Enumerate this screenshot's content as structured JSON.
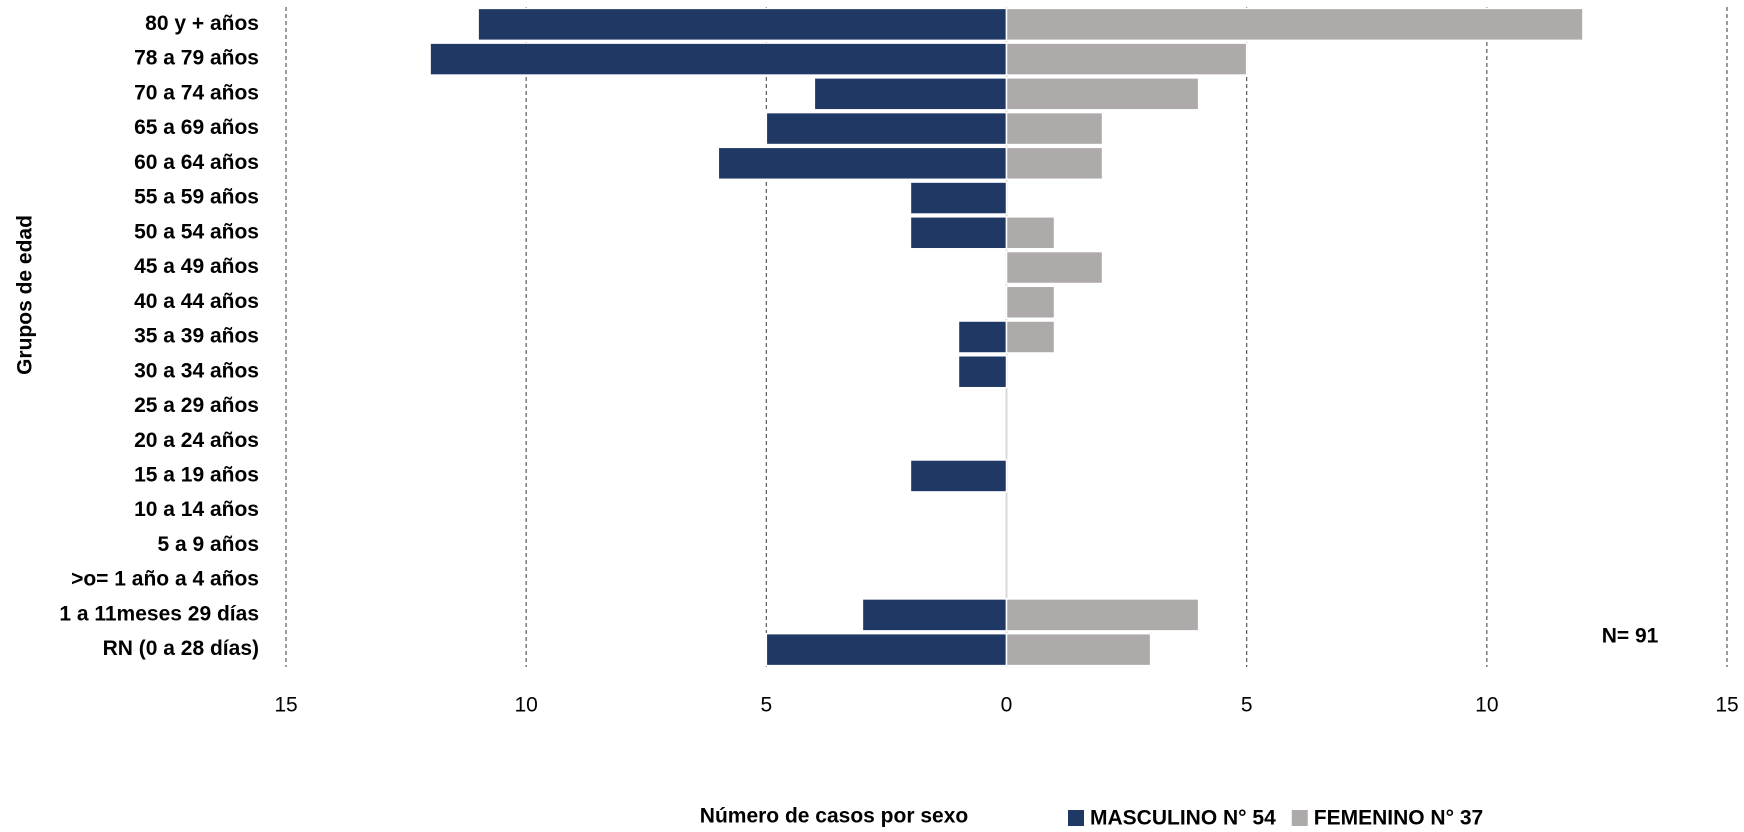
{
  "chart_data": {
    "type": "bar",
    "orientation": "horizontal",
    "stacked": "diverging",
    "y_axis_label": "Grupos de edad",
    "x_axis_label": "Número de casos por sexo",
    "annotation": "N= 91",
    "categories": [
      "80 y + años",
      "78 a 79 años",
      "70 a 74 años",
      "65 a 69 años",
      "60 a 64 años",
      "55 a 59 años",
      "50 a 54 años",
      "45 a 49 años",
      "40 a 44 años",
      "35 a 39 años",
      "30 a 34 años",
      "25 a 29 años",
      "20 a 24 años",
      "15 a 19 años",
      "10 a 14 años",
      "5 a 9 años",
      ">o= 1 año a 4 años",
      "1 a 11meses 29 días",
      "RN (0 a 28 días)"
    ],
    "series": [
      {
        "name": "MASCULINO N° 54",
        "color": "#1f3864",
        "values": [
          -11,
          -12,
          -4,
          -5,
          -6,
          -2,
          -2,
          0,
          0,
          -1,
          -1,
          0,
          0,
          -2,
          0,
          0,
          0,
          -3,
          -5
        ]
      },
      {
        "name": "FEMENINO N° 37",
        "color": "#aeaaaa",
        "values": [
          12,
          5,
          4,
          2,
          2,
          0,
          1,
          2,
          1,
          1,
          0,
          0,
          0,
          0,
          0,
          0,
          0,
          4,
          3
        ]
      }
    ],
    "xlim": [
      -15,
      15
    ],
    "xticks": [
      {
        "value": -15,
        "label": "15"
      },
      {
        "value": -10,
        "label": "10"
      },
      {
        "value": -5,
        "label": "5"
      },
      0,
      5,
      10,
      15
    ],
    "grid": true
  }
}
